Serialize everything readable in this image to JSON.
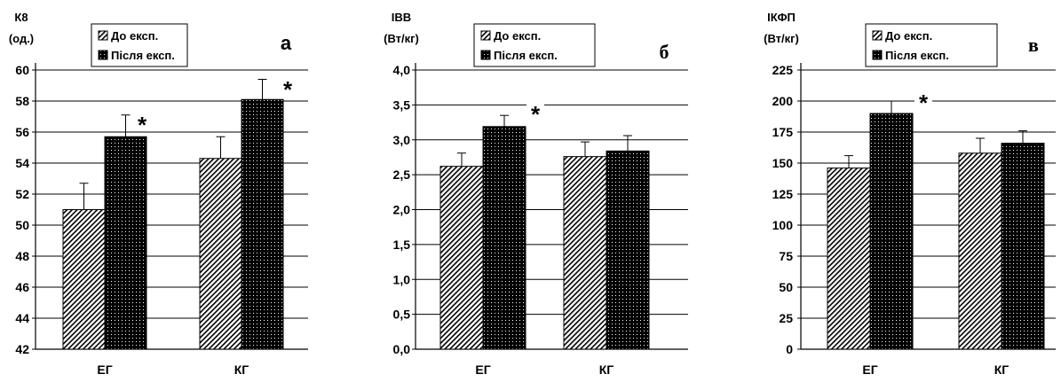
{
  "chart_data": [
    {
      "type": "bar",
      "panel_letter": "а",
      "ylabel": [
        "К8",
        "(од.)"
      ],
      "categories": [
        "ЕГ",
        "КГ"
      ],
      "ylim": [
        42,
        60
      ],
      "yticks": [
        "42",
        "44",
        "46",
        "48",
        "50",
        "52",
        "54",
        "56",
        "58",
        "60"
      ],
      "grid": true,
      "legend_position": "top",
      "series": [
        {
          "name": "До експ.",
          "values": [
            51.0,
            54.3
          ],
          "errors": [
            1.7,
            1.4
          ],
          "pattern": "hatch"
        },
        {
          "name": "Після експ.",
          "values": [
            55.7,
            58.1
          ],
          "errors": [
            1.4,
            1.3
          ],
          "pattern": "dots"
        }
      ],
      "annotations": [
        {
          "text": "*",
          "category": "ЕГ"
        },
        {
          "text": "*",
          "category": "КГ"
        }
      ]
    },
    {
      "type": "bar",
      "panel_letter": "б",
      "ylabel": [
        "ІВВ",
        "(Вт/кг)"
      ],
      "categories": [
        "ЕГ",
        "КГ"
      ],
      "ylim": [
        0,
        4
      ],
      "yticks": [
        "0,0",
        "0,5",
        "1,0",
        "1,5",
        "2,0",
        "2,5",
        "3,0",
        "3,5",
        "4,0"
      ],
      "grid": true,
      "legend_position": "top",
      "series": [
        {
          "name": "До експ.",
          "values": [
            2.62,
            2.76
          ],
          "errors": [
            0.19,
            0.21
          ],
          "pattern": "hatch"
        },
        {
          "name": "Після експ.",
          "values": [
            3.19,
            2.84
          ],
          "errors": [
            0.16,
            0.22
          ],
          "pattern": "dots"
        }
      ],
      "annotations": [
        {
          "text": "*",
          "category": "ЕГ"
        }
      ]
    },
    {
      "type": "bar",
      "panel_letter": "в",
      "ylabel": [
        "ІКФП",
        "(Вт/кг)"
      ],
      "categories": [
        "ЕГ",
        "КГ"
      ],
      "ylim": [
        0,
        225
      ],
      "yticks": [
        "0",
        "25",
        "50",
        "75",
        "100",
        "125",
        "150",
        "175",
        "200",
        "225"
      ],
      "grid": true,
      "legend_position": "top",
      "series": [
        {
          "name": "До експ.",
          "values": [
            146,
            158
          ],
          "errors": [
            10,
            12
          ],
          "pattern": "hatch"
        },
        {
          "name": "Після експ.",
          "values": [
            190,
            166
          ],
          "errors": [
            10,
            10
          ],
          "pattern": "dots"
        }
      ],
      "annotations": [
        {
          "text": "*",
          "category": "ЕГ"
        }
      ]
    }
  ],
  "colors": {
    "bar_fill": "#000000",
    "hatch_bg": "#ffffff",
    "grid": "#000000"
  }
}
